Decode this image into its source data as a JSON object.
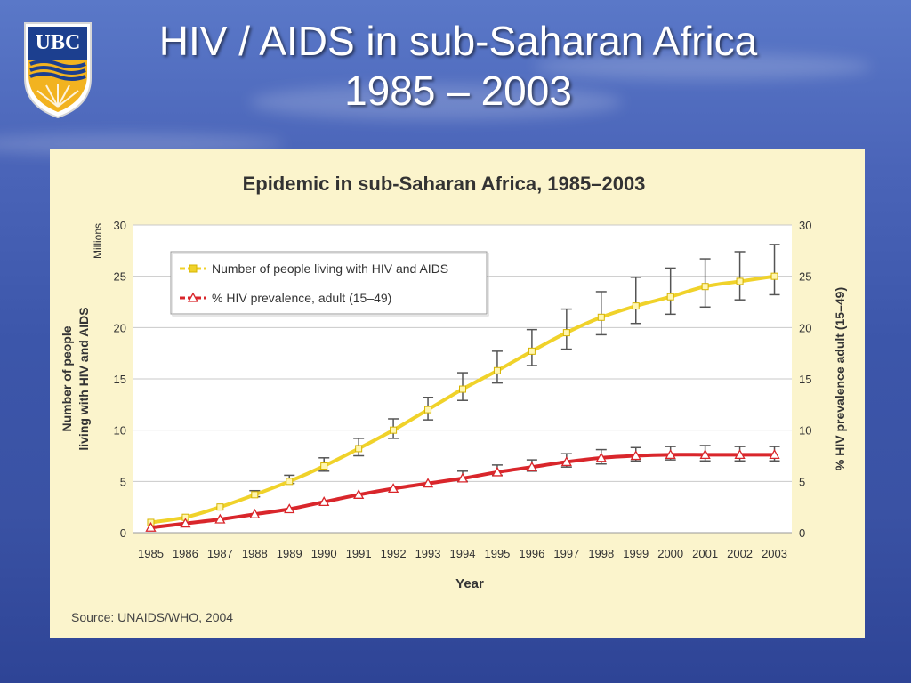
{
  "slide": {
    "title_line1": "HIV / AIDS in sub-Saharan Africa",
    "title_line2": "1985 – 2003",
    "logo_text": "UBC",
    "colors": {
      "background": "#3c56aa",
      "panel": "#fbf4cc",
      "logo_blue": "#1c3f8f",
      "logo_gold": "#f2b320"
    }
  },
  "chart_data": {
    "type": "line",
    "title": "Epidemic in sub-Saharan Africa, 1985–2003",
    "xlabel": "Year",
    "ylabel_left": "Number of people living with HIV and AIDS",
    "ylabel_left_unit": "Millions",
    "ylabel_right": "% HIV prevalence adult (15–49)",
    "categories": [
      "1985",
      "1986",
      "1987",
      "1988",
      "1989",
      "1990",
      "1991",
      "1992",
      "1993",
      "1994",
      "1995",
      "1996",
      "1997",
      "1998",
      "1999",
      "2000",
      "2001",
      "2002",
      "2003"
    ],
    "ylim_left": [
      0,
      30
    ],
    "ylim_right": [
      0,
      30
    ],
    "yticks": [
      0,
      5,
      10,
      15,
      20,
      25,
      30
    ],
    "grid": true,
    "legend_position": "top-left",
    "series": [
      {
        "name": "Number of people living with HIV and AIDS",
        "axis": "left",
        "color": "#f0d22a",
        "marker": "square",
        "values": [
          1.0,
          1.5,
          2.5,
          3.7,
          5.0,
          6.5,
          8.2,
          10.0,
          12.0,
          14.0,
          15.8,
          17.7,
          19.5,
          21.0,
          22.1,
          23.0,
          24.0,
          24.5,
          25.0
        ],
        "error_low": [
          null,
          null,
          null,
          3.5,
          4.8,
          6.0,
          7.5,
          9.2,
          11.0,
          12.9,
          14.6,
          16.3,
          17.9,
          19.3,
          20.4,
          21.3,
          22.0,
          22.7,
          23.2
        ],
        "error_high": [
          null,
          null,
          null,
          4.1,
          5.6,
          7.3,
          9.2,
          11.1,
          13.2,
          15.6,
          17.7,
          19.8,
          21.8,
          23.5,
          24.9,
          25.8,
          26.7,
          27.4,
          28.1
        ]
      },
      {
        "name": "% HIV prevalence, adult (15–49)",
        "axis": "right",
        "color": "#d9262b",
        "marker": "triangle",
        "values": [
          0.5,
          0.9,
          1.3,
          1.8,
          2.3,
          3.0,
          3.7,
          4.3,
          4.8,
          5.3,
          5.9,
          6.4,
          6.9,
          7.3,
          7.5,
          7.6,
          7.6,
          7.6,
          7.6
        ],
        "error_low": [
          null,
          null,
          null,
          null,
          null,
          null,
          null,
          null,
          null,
          5.0,
          5.6,
          6.0,
          6.4,
          6.7,
          7.0,
          7.1,
          7.0,
          7.0,
          7.0
        ],
        "error_high": [
          null,
          null,
          null,
          null,
          null,
          null,
          null,
          null,
          null,
          6.0,
          6.6,
          7.1,
          7.7,
          8.1,
          8.3,
          8.4,
          8.5,
          8.4,
          8.4
        ]
      }
    ],
    "source": "Source: UNAIDS/WHO, 2004"
  }
}
